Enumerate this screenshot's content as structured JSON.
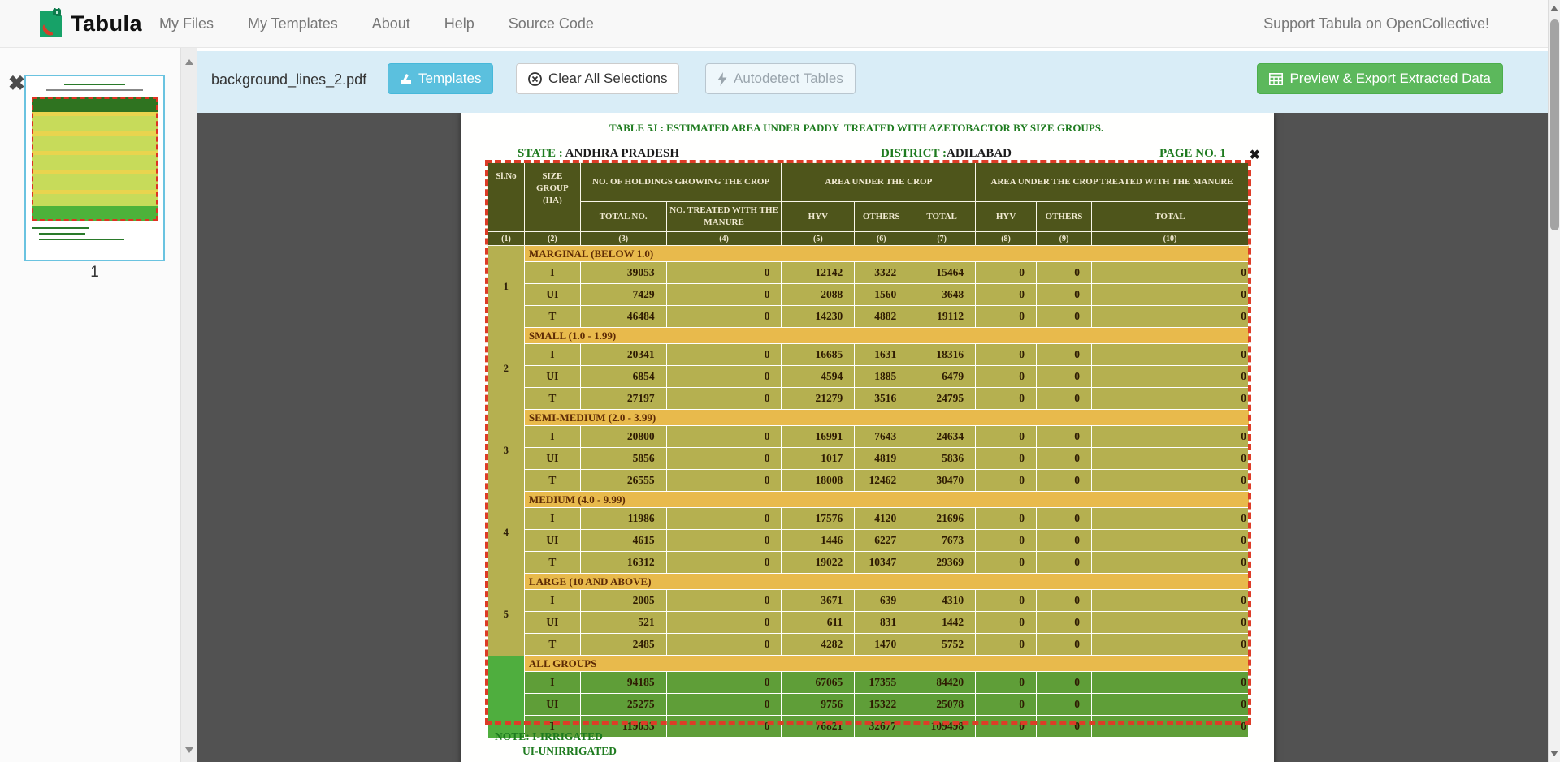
{
  "navbar": {
    "brand": "Tabula",
    "items": [
      {
        "id": "my-files",
        "label": "My Files"
      },
      {
        "id": "my-templates",
        "label": "My Templates"
      },
      {
        "id": "about",
        "label": "About"
      },
      {
        "id": "help",
        "label": "Help"
      },
      {
        "id": "source-code",
        "label": "Source Code"
      }
    ],
    "support_link": "Support Tabula on OpenCollective!"
  },
  "toolbar": {
    "filename": "background_lines_2.pdf",
    "templates_label": "Templates",
    "clear_label": "Clear All Selections",
    "autodetect_label": "Autodetect Tables",
    "export_label": "Preview & Export Extracted Data"
  },
  "sidebar": {
    "delete_glyph": "✖",
    "page_number": "1"
  },
  "selection": {
    "close_glyph": "✖"
  },
  "pdf": {
    "title": "TABLE 5J : ESTIMATED AREA UNDER PADDY  TREATED WITH AZETOBACTOR BY SIZE GROUPS.",
    "state_label": "STATE :",
    "state_value": " ANDHRA PRADESH",
    "district_label": "DISTRICT :",
    "district_value": "ADILABAD",
    "page_label": "PAGE NO. 1",
    "note_line1": "NOTE: I-IRRIGATED",
    "note_line2": "UI-UNIRRIGATED",
    "table": {
      "header": {
        "slno": "Sl.No",
        "size_group": "SIZE GROUP (HA)",
        "holdings": "NO. OF HOLDINGS GROWING THE CROP",
        "area": "AREA UNDER THE CROP",
        "area_treated": "AREA UNDER THE CROP TREATED WITH THE  MANURE"
      },
      "col_headers_sub": [
        "TOTAL NO.",
        "NO. TREATED WITH THE  MANURE",
        "HYV",
        "OTHERS",
        "TOTAL",
        "HYV",
        "OTHERS",
        "TOTAL"
      ],
      "col_numbers": [
        "(1)",
        "(2)",
        "(3)",
        "(4)",
        "(5)",
        "(6)",
        "(7)",
        "(8)",
        "(9)",
        "(10)"
      ],
      "groups": [
        {
          "sl_no": "1",
          "label": "MARGINAL (BELOW 1.0)",
          "highlight": false,
          "rows": [
            [
              "I",
              "39053",
              "0",
              "12142",
              "3322",
              "15464",
              "0",
              "0",
              "0"
            ],
            [
              "UI",
              "7429",
              "0",
              "2088",
              "1560",
              "3648",
              "0",
              "0",
              "0"
            ],
            [
              "T",
              "46484",
              "0",
              "14230",
              "4882",
              "19112",
              "0",
              "0",
              "0"
            ]
          ]
        },
        {
          "sl_no": "2",
          "label": "SMALL (1.0 - 1.99)",
          "highlight": false,
          "rows": [
            [
              "I",
              "20341",
              "0",
              "16685",
              "1631",
              "18316",
              "0",
              "0",
              "0"
            ],
            [
              "UI",
              "6854",
              "0",
              "4594",
              "1885",
              "6479",
              "0",
              "0",
              "0"
            ],
            [
              "T",
              "27197",
              "0",
              "21279",
              "3516",
              "24795",
              "0",
              "0",
              "0"
            ]
          ]
        },
        {
          "sl_no": "3",
          "label": "SEMI-MEDIUM (2.0 - 3.99)",
          "highlight": false,
          "rows": [
            [
              "I",
              "20800",
              "0",
              "16991",
              "7643",
              "24634",
              "0",
              "0",
              "0"
            ],
            [
              "UI",
              "5856",
              "0",
              "1017",
              "4819",
              "5836",
              "0",
              "0",
              "0"
            ],
            [
              "T",
              "26555",
              "0",
              "18008",
              "12462",
              "30470",
              "0",
              "0",
              "0"
            ]
          ]
        },
        {
          "sl_no": "4",
          "label": "MEDIUM (4.0 - 9.99)",
          "highlight": false,
          "rows": [
            [
              "I",
              "11986",
              "0",
              "17576",
              "4120",
              "21696",
              "0",
              "0",
              "0"
            ],
            [
              "UI",
              "4615",
              "0",
              "1446",
              "6227",
              "7673",
              "0",
              "0",
              "0"
            ],
            [
              "T",
              "16312",
              "0",
              "19022",
              "10347",
              "29369",
              "0",
              "0",
              "0"
            ]
          ]
        },
        {
          "sl_no": "5",
          "label": "LARGE (10 AND ABOVE)",
          "highlight": false,
          "rows": [
            [
              "I",
              "2005",
              "0",
              "3671",
              "639",
              "4310",
              "0",
              "0",
              "0"
            ],
            [
              "UI",
              "521",
              "0",
              "611",
              "831",
              "1442",
              "0",
              "0",
              "0"
            ],
            [
              "T",
              "2485",
              "0",
              "4282",
              "1470",
              "5752",
              "0",
              "0",
              "0"
            ]
          ]
        },
        {
          "sl_no": "",
          "label": "ALL GROUPS",
          "highlight": true,
          "rows": [
            [
              "I",
              "94185",
              "0",
              "67065",
              "17355",
              "84420",
              "0",
              "0",
              "0"
            ],
            [
              "UI",
              "25275",
              "0",
              "9756",
              "15322",
              "25078",
              "0",
              "0",
              "0"
            ],
            [
              "T",
              "119033",
              "0",
              "76821",
              "32677",
              "109498",
              "0",
              "0",
              "0"
            ]
          ]
        }
      ]
    }
  },
  "colors": {
    "toolbar_bg": "#d9edf7",
    "templates_btn": "#5bc0de",
    "export_btn": "#5cb85c",
    "main_bg": "#525252",
    "table_header_bg": "#4e551b",
    "table_row_bg": "#b5b050",
    "band_bg": "#e8ba4c",
    "all_groups_row_bg": "#5f9e38",
    "all_groups_slno_bg": "#4fae3e",
    "selection_red": "#dd3c27",
    "pdf_green": "#1e7b1f"
  }
}
